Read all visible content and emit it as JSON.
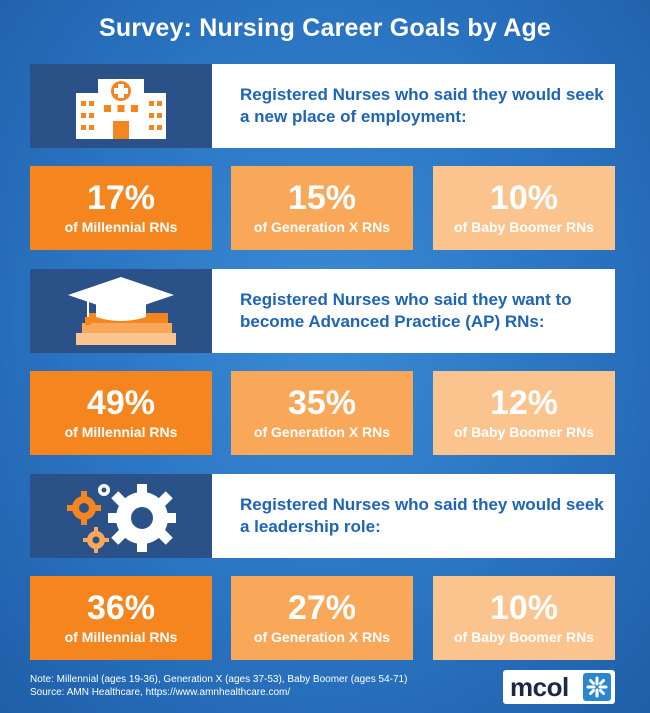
{
  "title": "Survey: Nursing Career Goals by Age",
  "colors": {
    "background": "#2a74c2",
    "icon_panel": "#2a5289",
    "question_text": "#1e64b7",
    "millennial": "#f5861f",
    "generation_x": "#f9a85a",
    "baby_boomer": "#fbc48e"
  },
  "chart_data": {
    "type": "table",
    "title": "Survey: Nursing Career Goals by Age",
    "categories": [
      "Millennial RNs",
      "Generation X RNs",
      "Baby Boomer RNs"
    ],
    "series": [
      {
        "name": "Registered Nurses who said they would seek a new place of employment:",
        "icon": "hospital-icon",
        "values": [
          17,
          15,
          10
        ],
        "labels": [
          "17%",
          "15%",
          "10%"
        ],
        "groups": [
          "of Millennial RNs",
          "of Generation X RNs",
          "of Baby Boomer RNs"
        ]
      },
      {
        "name": "Registered Nurses who said they want to become Advanced Practice (AP) RNs:",
        "icon": "graduation-cap-icon",
        "values": [
          49,
          35,
          12
        ],
        "labels": [
          "49%",
          "35%",
          "12%"
        ],
        "groups": [
          "of Millennial RNs",
          "of Generation X RNs",
          "of Baby Boomer RNs"
        ]
      },
      {
        "name": "Registered Nurses who said they would seek a leadership role:",
        "icon": "gears-icon",
        "values": [
          36,
          27,
          10
        ],
        "labels": [
          "36%",
          "27%",
          "10%"
        ],
        "groups": [
          "of Millennial RNs",
          "of Generation X RNs",
          "of Baby Boomer RNs"
        ]
      }
    ]
  },
  "footer": {
    "note": "Note: Millennial (ages 19-36), Generation X (ages 37-53), Baby Boomer (ages 54-71)",
    "source": "Source:  AMN Healthcare, https://www.amnhealthcare.com/"
  },
  "logo": {
    "text": "mcol",
    "icon": "mcol-logo-icon"
  }
}
